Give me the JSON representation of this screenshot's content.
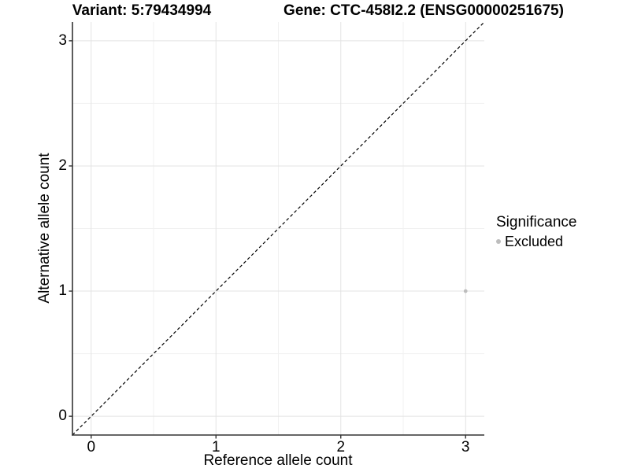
{
  "colors": {
    "background": "#ffffff",
    "text": "#000000",
    "axis_line": "#333333",
    "grid_major": "#e3e3e3",
    "grid_minor": "#f1f1f1",
    "identity_line": "#000000",
    "excluded_point": "#bdbdbd"
  },
  "chart_data": {
    "type": "scatter",
    "title_left": "Variant: 5:79434994",
    "title_right": "Gene: CTC-458I2.2 (ENSG00000251675)",
    "xlabel": "Reference allele count",
    "ylabel": "Alternative allele count",
    "xlim": [
      -0.15,
      3.15
    ],
    "ylim": [
      -0.15,
      3.15
    ],
    "x_ticks": [
      0,
      1,
      2,
      3
    ],
    "y_ticks": [
      0,
      1,
      2,
      3
    ],
    "x_minor": [
      0.5,
      1.5,
      2.5
    ],
    "y_minor": [
      0.5,
      1.5,
      2.5
    ],
    "grid": true,
    "identity_line": {
      "style": "dashed",
      "slope": 1,
      "intercept": 0
    },
    "points": [
      {
        "x": 3,
        "y": 1,
        "significance": "Excluded",
        "color": "#bdbdbd"
      }
    ],
    "legend": {
      "title": "Significance",
      "position": "right",
      "entries": [
        {
          "label": "Excluded",
          "color": "#bdbdbd"
        }
      ]
    }
  }
}
